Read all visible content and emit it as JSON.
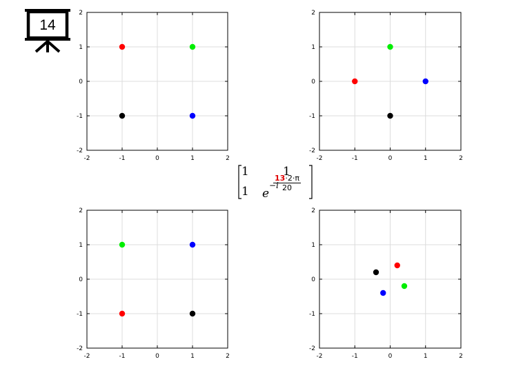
{
  "slide_badge": {
    "number": "14",
    "icon": "presentation-board-icon"
  },
  "matrix": {
    "r1c1": "1",
    "r1c2": "1",
    "r2c1": "1",
    "exp_base": "e",
    "exp_prefix": "−i",
    "frac_num_highlight": "13",
    "frac_num_rest": "·2·π",
    "frac_den": "20",
    "highlight_color": "#e00000"
  },
  "chart_data": [
    {
      "type": "scatter",
      "title": "",
      "xlabel": "",
      "ylabel": "",
      "xlim": [
        -2,
        2
      ],
      "ylim": [
        -2,
        2
      ],
      "xticks": [
        "-2",
        "-1",
        "0",
        "1",
        "2"
      ],
      "yticks": [
        "-2",
        "-1",
        "0",
        "1",
        "2"
      ],
      "grid": true,
      "points": [
        {
          "x": -1,
          "y": 1,
          "color": "#ff0000"
        },
        {
          "x": 1,
          "y": 1,
          "color": "#00ee00"
        },
        {
          "x": -1,
          "y": -1,
          "color": "#000000"
        },
        {
          "x": 1,
          "y": -1,
          "color": "#0000ff"
        }
      ]
    },
    {
      "type": "scatter",
      "title": "",
      "xlabel": "",
      "ylabel": "",
      "xlim": [
        -2,
        2
      ],
      "ylim": [
        -2,
        2
      ],
      "xticks": [
        "-2",
        "-1",
        "0",
        "1",
        "2"
      ],
      "yticks": [
        "-2",
        "-1",
        "0",
        "1",
        "2"
      ],
      "grid": true,
      "points": [
        {
          "x": 0,
          "y": 1,
          "color": "#00ee00"
        },
        {
          "x": -1,
          "y": 0,
          "color": "#ff0000"
        },
        {
          "x": 1,
          "y": 0,
          "color": "#0000ff"
        },
        {
          "x": 0,
          "y": -1,
          "color": "#000000"
        }
      ]
    },
    {
      "type": "scatter",
      "title": "",
      "xlabel": "",
      "ylabel": "",
      "xlim": [
        -2,
        2
      ],
      "ylim": [
        -2,
        2
      ],
      "xticks": [
        "-2",
        "-1",
        "0",
        "1",
        "2"
      ],
      "yticks": [
        "-2",
        "-1",
        "0",
        "1",
        "2"
      ],
      "grid": true,
      "points": [
        {
          "x": -1,
          "y": 1,
          "color": "#00ee00"
        },
        {
          "x": 1,
          "y": 1,
          "color": "#0000ff"
        },
        {
          "x": -1,
          "y": -1,
          "color": "#ff0000"
        },
        {
          "x": 1,
          "y": -1,
          "color": "#000000"
        }
      ]
    },
    {
      "type": "scatter",
      "title": "",
      "xlabel": "",
      "ylabel": "",
      "xlim": [
        -2,
        2
      ],
      "ylim": [
        -2,
        2
      ],
      "xticks": [
        "-2",
        "-1",
        "0",
        "1",
        "2"
      ],
      "yticks": [
        "-2",
        "-1",
        "0",
        "1",
        "2"
      ],
      "grid": true,
      "points": [
        {
          "x": 0.2,
          "y": 0.4,
          "color": "#ff0000"
        },
        {
          "x": -0.4,
          "y": 0.2,
          "color": "#000000"
        },
        {
          "x": 0.4,
          "y": -0.2,
          "color": "#00ee00"
        },
        {
          "x": -0.2,
          "y": -0.4,
          "color": "#0000ff"
        }
      ]
    }
  ]
}
